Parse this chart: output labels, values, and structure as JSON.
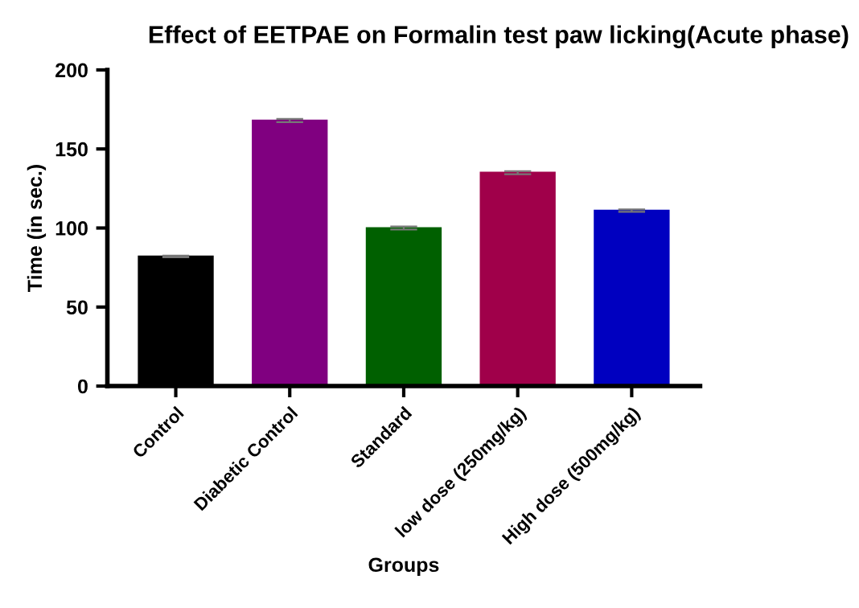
{
  "chart_data": {
    "type": "bar",
    "title": "Effect of EETPAE on Formalin test paw licking(Acute phase)",
    "xlabel": "Groups",
    "ylabel": "Time (in sec.)",
    "categories": [
      "Control",
      "Diabetic Control",
      "Standard",
      "low dose (250mg/kg)",
      "High dose (500mg/kg)"
    ],
    "values": [
      82,
      168,
      100,
      135,
      111
    ],
    "errors": [
      0.5,
      1,
      1,
      1,
      0.8
    ],
    "colors": [
      "#000000",
      "#800080",
      "#006000",
      "#a0004a",
      "#0000c0"
    ],
    "ylim": [
      0,
      200
    ],
    "yticks": [
      0,
      50,
      100,
      150,
      200
    ],
    "grid": false,
    "legend": false
  }
}
